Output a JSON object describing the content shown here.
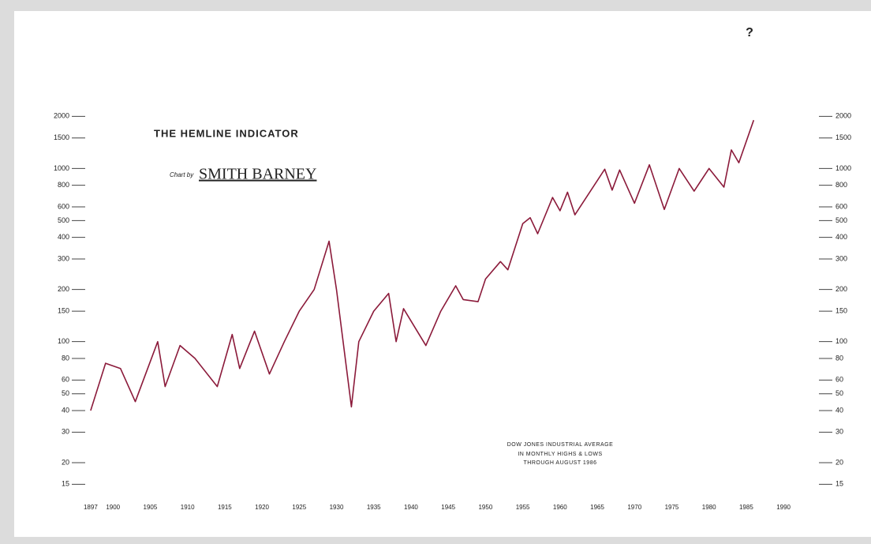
{
  "chart_data": {
    "type": "line",
    "title": "THE HEMLINE INDICATOR",
    "credit_prefix": "Chart by",
    "credit": "SMITH BARNEY",
    "annotations": [
      "DOW JONES INDUSTRIAL AVERAGE",
      "IN MONTHLY HIGHS & LOWS",
      "THROUGH AUGUST 1986",
      "?"
    ],
    "color": "#8b1a3a",
    "log_scale": true,
    "x": [
      1897,
      1899,
      1901,
      1903,
      1906,
      1907,
      1909,
      1911,
      1914,
      1916,
      1917,
      1919,
      1921,
      1923,
      1925,
      1927,
      1929,
      1930,
      1932,
      1933,
      1935,
      1937,
      1938,
      1939,
      1942,
      1944,
      1946,
      1947,
      1949,
      1950,
      1952,
      1953,
      1955,
      1956,
      1957,
      1959,
      1960,
      1961,
      1962,
      1966,
      1967,
      1968,
      1970,
      1972,
      1974,
      1976,
      1978,
      1980,
      1982,
      1983,
      1984,
      1986
    ],
    "values": [
      40,
      75,
      70,
      45,
      100,
      55,
      95,
      80,
      55,
      110,
      70,
      115,
      65,
      100,
      150,
      200,
      380,
      200,
      42,
      100,
      150,
      190,
      100,
      155,
      95,
      150,
      210,
      175,
      170,
      230,
      290,
      260,
      480,
      520,
      420,
      680,
      570,
      730,
      540,
      990,
      750,
      980,
      630,
      1050,
      580,
      1000,
      740,
      1000,
      780,
      1280,
      1080,
      1900
    ],
    "xlim": [
      1895,
      1992
    ],
    "xticks": [
      1897,
      1900,
      1905,
      1910,
      1915,
      1920,
      1925,
      1930,
      1935,
      1940,
      1945,
      1950,
      1955,
      1960,
      1965,
      1970,
      1975,
      1980,
      1985,
      1990
    ],
    "ylim": [
      13,
      2400
    ],
    "yticks": [
      15,
      20,
      30,
      40,
      50,
      60,
      80,
      100,
      150,
      200,
      300,
      400,
      500,
      600,
      800,
      1000,
      1500,
      2000
    ]
  }
}
